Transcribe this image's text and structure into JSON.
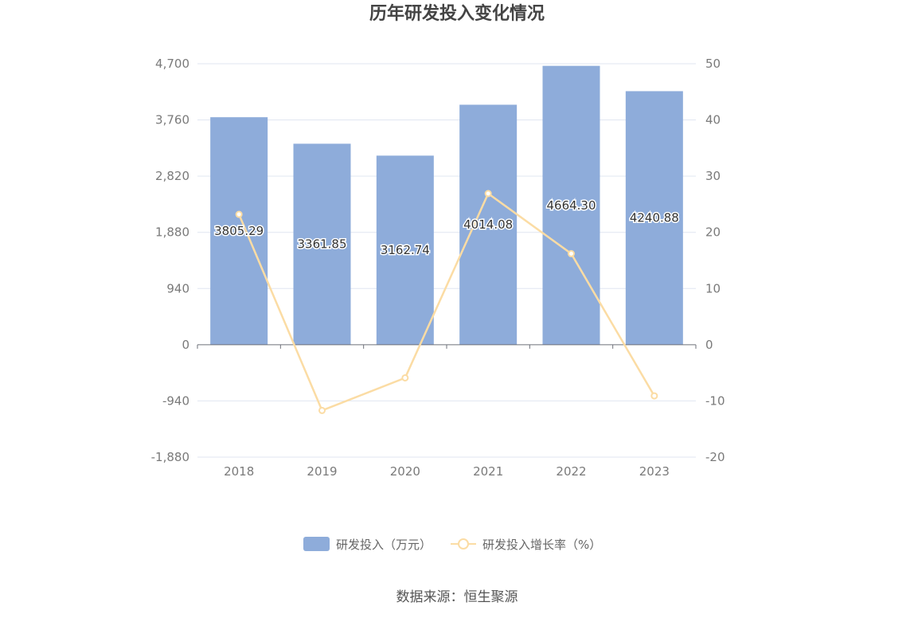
{
  "chart_data": {
    "type": "bar",
    "title": "历年研发投入变化情况",
    "categories": [
      "2018",
      "2019",
      "2020",
      "2021",
      "2022",
      "2023"
    ],
    "series": [
      {
        "name": "研发投入（万元）",
        "type": "bar",
        "axis": "left",
        "color": "#8eacda",
        "values": [
          3805.29,
          3361.85,
          3162.74,
          4014.08,
          4664.3,
          4240.88
        ],
        "labels": [
          "3805.29",
          "3361.85",
          "3162.74",
          "4014.08",
          "4664.30",
          "4240.88"
        ]
      },
      {
        "name": "研发投入增长率（%）",
        "type": "line",
        "axis": "right",
        "color": "#fbdca4",
        "values": [
          23.2,
          -11.7,
          -5.9,
          26.9,
          16.2,
          -9.1
        ]
      }
    ],
    "y_left": {
      "ylim": [
        -1880,
        4700
      ],
      "ticks": [
        4700,
        3760,
        2820,
        1880,
        940,
        0,
        -940,
        -1880
      ],
      "tick_labels": [
        "4,700",
        "3,760",
        "2,820",
        "1,880",
        "940",
        "0",
        "-940",
        "-1,880"
      ]
    },
    "y_right": {
      "ylim": [
        -20,
        50
      ],
      "ticks": [
        50,
        40,
        30,
        20,
        10,
        0,
        -10,
        -20
      ],
      "tick_labels": [
        "50",
        "40",
        "30",
        "20",
        "10",
        "0",
        "-10",
        "-20"
      ]
    },
    "grid": true,
    "legend_position": "bottom",
    "source": "数据来源：恒生聚源"
  }
}
